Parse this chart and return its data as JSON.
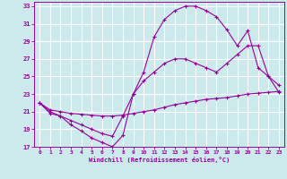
{
  "xlabel": "Windchill (Refroidissement éolien,°C)",
  "bg_color": "#cce9ec",
  "grid_color": "#ffffff",
  "line_color": "#990099",
  "xlim": [
    -0.5,
    23.5
  ],
  "ylim": [
    17,
    33.5
  ],
  "xticks": [
    0,
    1,
    2,
    3,
    4,
    5,
    6,
    7,
    8,
    9,
    10,
    11,
    12,
    13,
    14,
    15,
    16,
    17,
    18,
    19,
    20,
    21,
    22,
    23
  ],
  "yticks": [
    17,
    19,
    21,
    23,
    25,
    27,
    29,
    31,
    33
  ],
  "series": [
    {
      "x": [
        0,
        1,
        2,
        3,
        4,
        5,
        6,
        7,
        8,
        9,
        10,
        11,
        12,
        13,
        14,
        15,
        16,
        17,
        18,
        19,
        20,
        21,
        22,
        23
      ],
      "y": [
        22,
        20.8,
        20.5,
        19.5,
        18.8,
        18.0,
        17.5,
        17.0,
        18.3,
        23.0,
        25.5,
        29.5,
        31.5,
        32.5,
        33.0,
        33.0,
        32.5,
        31.8,
        30.3,
        28.5,
        30.2,
        26.0,
        25.0,
        23.2
      ]
    },
    {
      "x": [
        0,
        1,
        2,
        3,
        4,
        5,
        6,
        7,
        8,
        9,
        10,
        11,
        12,
        13,
        14,
        15,
        16,
        17,
        18,
        19,
        20,
        21,
        22,
        23
      ],
      "y": [
        22.0,
        21.2,
        21.0,
        20.8,
        20.7,
        20.6,
        20.5,
        20.5,
        20.6,
        20.8,
        21.0,
        21.2,
        21.5,
        21.8,
        22.0,
        22.2,
        22.4,
        22.5,
        22.6,
        22.8,
        23.0,
        23.1,
        23.2,
        23.3
      ]
    },
    {
      "x": [
        0,
        1,
        2,
        3,
        4,
        5,
        6,
        7,
        8,
        9,
        10,
        11,
        12,
        13,
        14,
        15,
        16,
        17,
        18,
        19,
        20,
        21,
        22,
        23
      ],
      "y": [
        22,
        21.0,
        20.5,
        20.0,
        19.5,
        19.0,
        18.5,
        18.2,
        20.5,
        23.0,
        24.5,
        25.5,
        26.5,
        27.0,
        27.0,
        26.5,
        26.0,
        25.5,
        26.5,
        27.5,
        28.5,
        28.5,
        25.0,
        24.0
      ]
    }
  ]
}
